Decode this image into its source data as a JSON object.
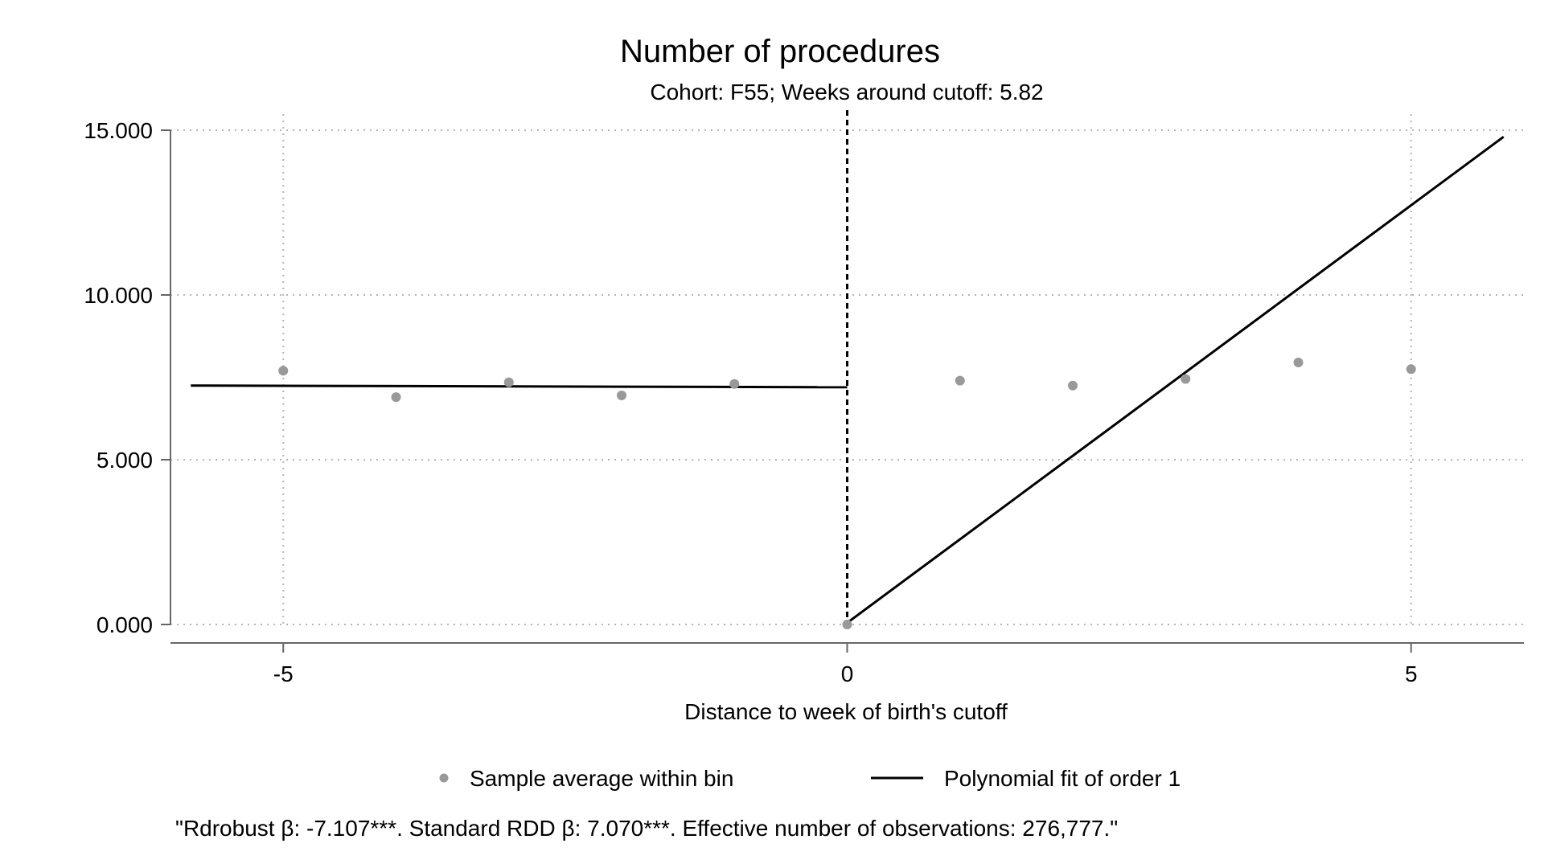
{
  "chart_data": {
    "type": "scatter",
    "title": "Number of procedures",
    "subtitle": "Cohort: F55; Weeks around cutoff: 5.82",
    "xlabel": "Distance to week of birth's cutoff",
    "ylabel": "",
    "xlim": [
      -6,
      6
    ],
    "ylim": [
      0,
      15
    ],
    "x_ticks": [
      {
        "value": -5,
        "label": "-5"
      },
      {
        "value": 0,
        "label": "0"
      },
      {
        "value": 5,
        "label": "5"
      }
    ],
    "y_ticks": [
      {
        "value": 0,
        "label": "0.000"
      },
      {
        "value": 5,
        "label": "5.000"
      },
      {
        "value": 10,
        "label": "10.000"
      },
      {
        "value": 15,
        "label": "15.000"
      }
    ],
    "grid": true,
    "cutoff_x": 0,
    "series": [
      {
        "name": "Sample average within bin",
        "kind": "points",
        "color": "#999999",
        "points": [
          {
            "x": -5,
            "y": 7.7
          },
          {
            "x": -4,
            "y": 6.9
          },
          {
            "x": -3,
            "y": 7.35
          },
          {
            "x": -2,
            "y": 6.95
          },
          {
            "x": -1,
            "y": 7.3
          },
          {
            "x": 0,
            "y": 0.0
          },
          {
            "x": 1,
            "y": 7.4
          },
          {
            "x": 2,
            "y": 7.25
          },
          {
            "x": 3,
            "y": 7.45
          },
          {
            "x": 4,
            "y": 7.95
          },
          {
            "x": 5,
            "y": 7.75
          }
        ]
      },
      {
        "name": "Polynomial fit of order 1",
        "kind": "line",
        "color": "#000000",
        "segments": [
          [
            {
              "x": -5.82,
              "y": 7.25
            },
            {
              "x": 0,
              "y": 7.2
            }
          ],
          [
            {
              "x": 0,
              "y": 0.05
            },
            {
              "x": 5.82,
              "y": 14.8
            }
          ]
        ]
      }
    ],
    "legend": {
      "position": "bottom",
      "items": [
        "Sample average within bin",
        "Polynomial fit of order 1"
      ]
    },
    "note": "\"Rdrobust β: -7.107***. Standard RDD β: 7.070***. Effective number of observations: 276,777.\""
  }
}
